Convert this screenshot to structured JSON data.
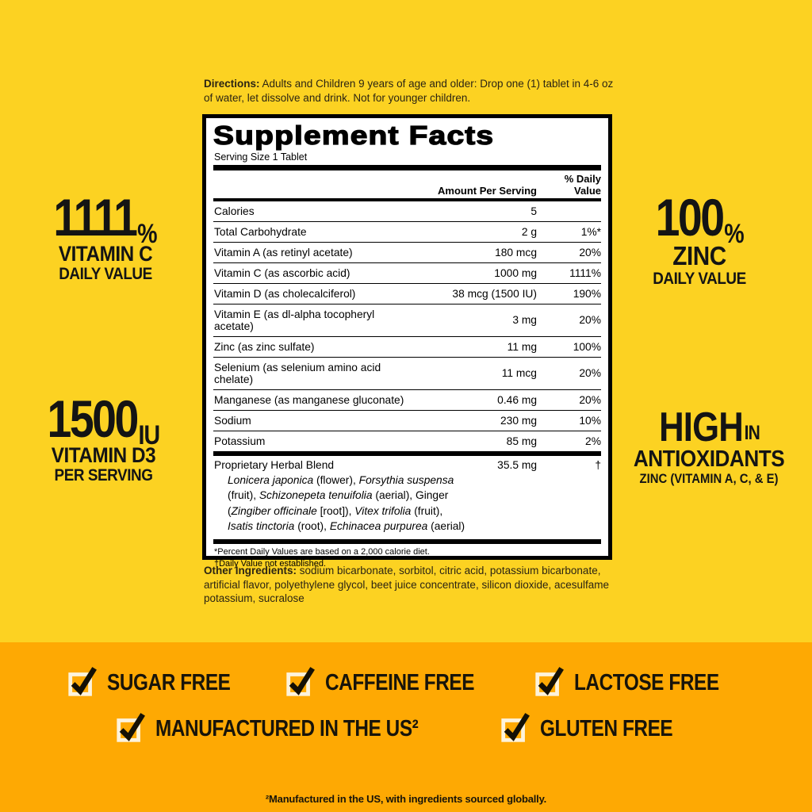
{
  "colors": {
    "background_yellow": "#fcd222",
    "band_orange": "#fea903",
    "panel_bg": "#ffffff",
    "text_black": "#1d1a10",
    "checkbox_cream": "#fdf3dc"
  },
  "directions": {
    "label": "Directions:",
    "text": " Adults and Children 9 years of age and older: Drop one (1) tablet in 4-6 oz of water, let dissolve and drink. Not for younger children."
  },
  "panel": {
    "title": "Supplement Facts",
    "serving_size": "Serving Size 1 Tablet",
    "col_amount": "Amount Per Serving",
    "col_dv": "% Daily Value",
    "rows": [
      {
        "name": "Calories",
        "amount": "5",
        "dv": ""
      },
      {
        "name": "Total Carbohydrate",
        "amount": "2 g",
        "dv": "1%*"
      },
      {
        "name": "Vitamin A (as retinyl acetate)",
        "amount": "180 mcg",
        "dv": "20%"
      },
      {
        "name": "Vitamin C (as ascorbic acid)",
        "amount": "1000 mg",
        "dv": "1111%"
      },
      {
        "name": "Vitamin D (as cholecalciferol)",
        "amount": "38 mcg (1500 IU)",
        "dv": "190%"
      },
      {
        "name": "Vitamin E (as dl-alpha tocopheryl acetate)",
        "amount": "3 mg",
        "dv": "20%"
      },
      {
        "name": "Zinc (as zinc sulfate)",
        "amount": "11 mg",
        "dv": "100%"
      },
      {
        "name": "Selenium (as selenium amino acid chelate)",
        "amount": "11 mcg",
        "dv": "20%"
      },
      {
        "name": "Manganese (as manganese gluconate)",
        "amount": "0.46 mg",
        "dv": "20%"
      },
      {
        "name": "Sodium",
        "amount": "230 mg",
        "dv": "10%"
      },
      {
        "name": "Potassium",
        "amount": "85 mg",
        "dv": "2%"
      }
    ],
    "blend": {
      "name": "Proprietary Herbal Blend",
      "amount": "35.5 mg",
      "dv": "†",
      "description_lines": [
        [
          {
            "i": 1,
            "t": "Lonicera japonica"
          },
          {
            "i": 0,
            "t": " (flower), "
          },
          {
            "i": 1,
            "t": "Forsythia suspensa"
          }
        ],
        [
          {
            "i": 0,
            "t": "(fruit), "
          },
          {
            "i": 1,
            "t": "Schizonepeta tenuifolia"
          },
          {
            "i": 0,
            "t": " (aerial), Ginger"
          }
        ],
        [
          {
            "i": 0,
            "t": "("
          },
          {
            "i": 1,
            "t": "Zingiber officinale"
          },
          {
            "i": 0,
            "t": " [root]), "
          },
          {
            "i": 1,
            "t": "Vitex trifolia"
          },
          {
            "i": 0,
            "t": " (fruit),"
          }
        ],
        [
          {
            "i": 1,
            "t": "Isatis tinctoria"
          },
          {
            "i": 0,
            "t": " (root), "
          },
          {
            "i": 1,
            "t": "Echinacea purpurea"
          },
          {
            "i": 0,
            "t": " (aerial)"
          }
        ]
      ]
    },
    "footnotes": [
      "*Percent Daily Values are based on a 2,000 calorie diet.",
      "†Daily Value not established."
    ]
  },
  "other_ingredients": {
    "label": "Other Ingredients:",
    "text": " sodium bicarbonate, sorbitol, citric acid, potassium bicarbonate, artificial flavor, polyethylene glycol, beet juice concentrate, silicon dioxide, acesulfame potassium, sucralose"
  },
  "callouts": {
    "vitamin_c": {
      "big": "1111",
      "unit": "%",
      "line1": "VITAMIN C",
      "line2": "DAILY VALUE"
    },
    "vitamin_d3": {
      "big": "1500",
      "unit": "IU",
      "line1": "VITAMIN D3",
      "line2": "PER SERVING"
    },
    "zinc": {
      "big": "100",
      "unit": "%",
      "line1": "ZINC",
      "line2": "DAILY VALUE"
    },
    "antioxidants": {
      "big": "HIGH",
      "unit": "IN",
      "line1": "ANTIOXIDANTS",
      "line2": "ZINC (VITAMIN A, C, & E)"
    }
  },
  "claims": {
    "row1": [
      "SUGAR FREE",
      "CAFFEINE FREE",
      "LACTOSE FREE"
    ],
    "row2": [
      "MANUFACTURED IN THE US²",
      "GLUTEN FREE"
    ]
  },
  "footer_note": "²Manufactured in the US, with ingredients sourced globally."
}
